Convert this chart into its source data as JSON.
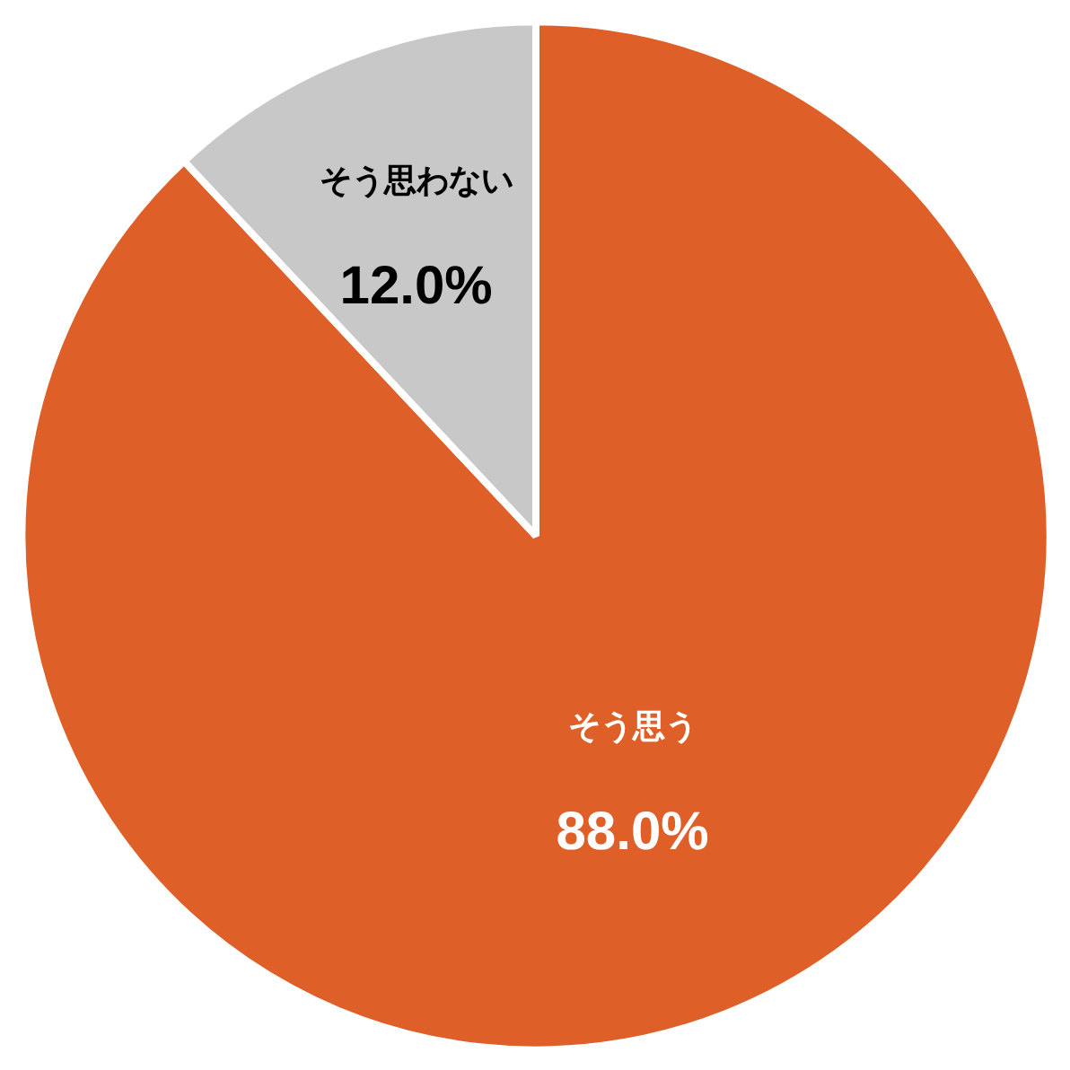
{
  "chart_data": {
    "type": "pie",
    "categories": [
      "そう思う",
      "そう思わない"
    ],
    "values": [
      88.0,
      12.0
    ],
    "colors": [
      "#df5f28",
      "#c8c8c8"
    ],
    "value_labels": [
      "88.0%",
      "12.0%"
    ]
  }
}
